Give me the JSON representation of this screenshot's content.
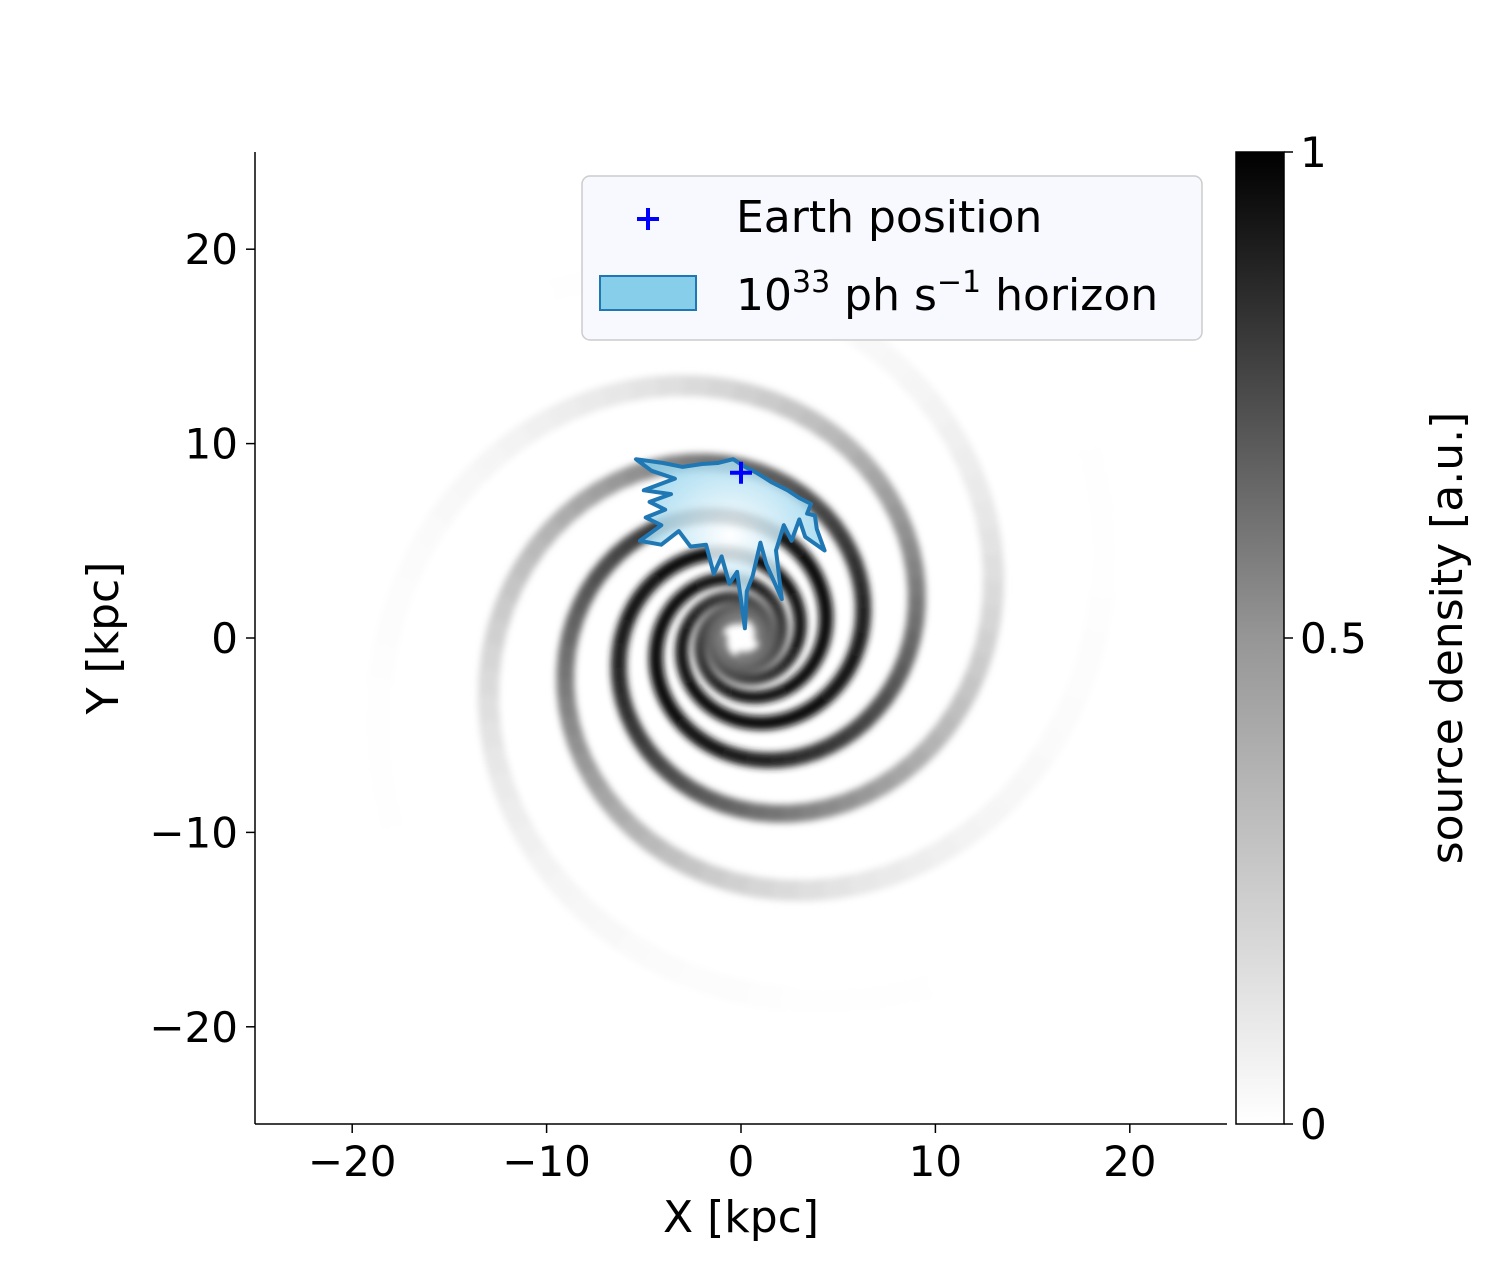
{
  "chart_data": {
    "type": "heatmap",
    "title": "",
    "xlabel": "X [kpc]",
    "ylabel": "Y [kpc]",
    "xlim": [
      -25,
      25
    ],
    "ylim": [
      -25,
      25
    ],
    "xticks": [
      -20,
      -10,
      0,
      10,
      20
    ],
    "xtick_labels": [
      "−20",
      "−10",
      "0",
      "10",
      "20"
    ],
    "yticks": [
      -20,
      -10,
      0,
      10,
      20
    ],
    "ytick_labels": [
      "−20",
      "−10",
      "0",
      "10",
      "20"
    ],
    "grid": false,
    "colormap": "Greys",
    "colorbar": {
      "label": "source density [a.u.]",
      "range": [
        0,
        1
      ],
      "ticks": [
        0,
        0.5,
        1
      ],
      "tick_labels": [
        "0",
        "0.5",
        "1"
      ]
    },
    "legend": {
      "placement": "top-right",
      "entries": [
        {
          "label": "Earth position",
          "marker": "plus",
          "color": "#0000ff"
        },
        {
          "label_base": "10",
          "label_exp": "33",
          "label_unit": " ph s",
          "label_unit_exp": "−1",
          "label_tail": " horizon",
          "marker": "patch",
          "color": "#87ceeb",
          "edge_color": "#1f77b4"
        }
      ]
    },
    "earth_position": {
      "x": 0.0,
      "y": 8.5
    },
    "spiral_arms": {
      "count": 4,
      "start_angles_deg": [
        0,
        90,
        180,
        270
      ],
      "pitch_angle_deg": 13,
      "min_radius_kpc": 1.0,
      "max_radius_kpc": 23
    },
    "horizon_polygon": [
      [
        -5.4,
        9.2
      ],
      [
        -4.0,
        9.0
      ],
      [
        -3.0,
        8.8
      ],
      [
        -2.0,
        8.95
      ],
      [
        -1.2,
        9.0
      ],
      [
        -0.4,
        9.2
      ],
      [
        0.2,
        8.8
      ],
      [
        0.8,
        8.5
      ],
      [
        1.6,
        8.0
      ],
      [
        2.4,
        7.6
      ],
      [
        3.0,
        7.2
      ],
      [
        3.6,
        6.9
      ],
      [
        3.4,
        6.4
      ],
      [
        3.8,
        6.3
      ],
      [
        3.9,
        5.6
      ],
      [
        4.3,
        4.5
      ],
      [
        3.3,
        5.2
      ],
      [
        3.0,
        6.1
      ],
      [
        2.6,
        5.0
      ],
      [
        2.2,
        5.8
      ],
      [
        1.8,
        4.5
      ],
      [
        2.1,
        2.0
      ],
      [
        1.3,
        3.8
      ],
      [
        1.0,
        4.9
      ],
      [
        0.6,
        3.2
      ],
      [
        0.3,
        2.4
      ],
      [
        0.2,
        0.5
      ],
      [
        -0.2,
        3.4
      ],
      [
        -0.6,
        2.8
      ],
      [
        -1.0,
        4.2
      ],
      [
        -1.4,
        3.3
      ],
      [
        -1.8,
        4.8
      ],
      [
        -2.6,
        4.7
      ],
      [
        -3.2,
        5.5
      ],
      [
        -4.1,
        4.8
      ],
      [
        -5.2,
        5.0
      ],
      [
        -4.1,
        5.8
      ],
      [
        -4.9,
        6.2
      ],
      [
        -3.9,
        6.6
      ],
      [
        -4.7,
        7.0
      ],
      [
        -3.6,
        7.4
      ],
      [
        -5.0,
        7.6
      ],
      [
        -3.4,
        8.2
      ],
      [
        -4.6,
        8.6
      ],
      [
        -5.4,
        9.2
      ]
    ]
  }
}
